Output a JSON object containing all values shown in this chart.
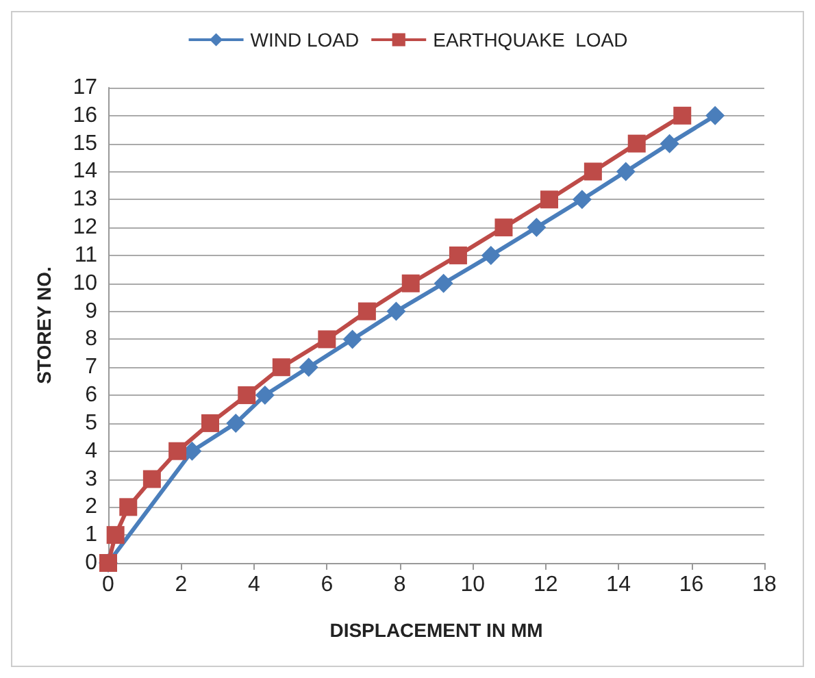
{
  "chart_data": {
    "type": "line",
    "xlabel": "DISPLACEMENT IN MM",
    "ylabel": "STOREY NO.",
    "xlim": [
      0,
      18
    ],
    "xticks": [
      0,
      2,
      4,
      6,
      8,
      10,
      12,
      14,
      16,
      18
    ],
    "ylim": [
      0,
      17
    ],
    "yticks": [
      0,
      1,
      2,
      3,
      4,
      5,
      6,
      7,
      8,
      9,
      10,
      11,
      12,
      13,
      14,
      15,
      16,
      17
    ],
    "grid": "y",
    "legend": "top",
    "line_style": "solid",
    "series": [
      {
        "name": "WIND LOAD",
        "color": "#4a7ebb",
        "marker": "diamond",
        "x": [
          0,
          0.1,
          0.4,
          1.3,
          2.3,
          3.5,
          4.3,
          5.5,
          6.7,
          7.9,
          9.2,
          10.5,
          11.75,
          13.0,
          14.2,
          15.4,
          16.65
        ],
        "values": [
          0,
          null,
          null,
          null,
          4,
          5,
          6,
          7,
          8,
          9,
          10,
          11,
          12,
          13,
          14,
          15,
          16
        ]
      },
      {
        "name": "EARTHQUAKE  LOAD",
        "color": "#be4b48",
        "marker": "square",
        "x": [
          0,
          0.2,
          0.55,
          1.2,
          1.9,
          2.8,
          3.8,
          4.75,
          6.0,
          7.1,
          8.3,
          9.6,
          10.85,
          12.1,
          13.3,
          14.5,
          15.75
        ],
        "values": [
          0,
          1,
          2,
          3,
          4,
          5,
          6,
          7,
          8,
          9,
          10,
          11,
          12,
          13,
          14,
          15,
          16
        ]
      }
    ]
  }
}
